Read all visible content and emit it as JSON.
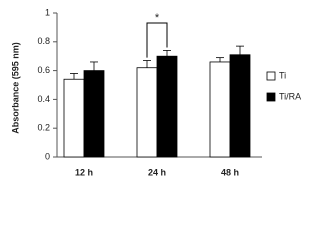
{
  "chart_data": {
    "type": "bar",
    "ylabel": "Absorbance (595 nm)",
    "categories": [
      "12 h",
      "24 h",
      "48 h"
    ],
    "series": [
      {
        "name": "Ti",
        "color": "#ffffff",
        "values": [
          0.54,
          0.62,
          0.66
        ],
        "errors": [
          0.04,
          0.05,
          0.03
        ]
      },
      {
        "name": "Ti/RA",
        "color": "#000000",
        "values": [
          0.6,
          0.7,
          0.71
        ],
        "errors": [
          0.06,
          0.04,
          0.06
        ]
      }
    ],
    "ylim": [
      0,
      1
    ],
    "yticks": [
      0,
      0.2,
      0.4,
      0.6,
      0.8,
      1
    ],
    "annotation": "*"
  }
}
